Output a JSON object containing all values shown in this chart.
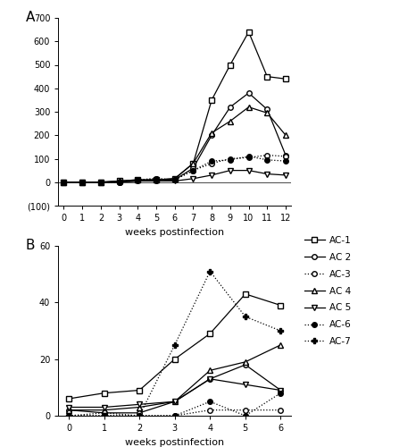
{
  "panel_A": {
    "weeks": [
      0,
      1,
      2,
      3,
      4,
      5,
      6,
      7,
      8,
      9,
      10,
      11,
      12
    ],
    "AC1": [
      0,
      0,
      0,
      5,
      10,
      10,
      15,
      80,
      350,
      500,
      640,
      450,
      440
    ],
    "AC2": [
      0,
      0,
      0,
      0,
      5,
      5,
      10,
      60,
      200,
      320,
      380,
      310,
      115
    ],
    "AC3": [
      0,
      0,
      0,
      0,
      10,
      15,
      10,
      50,
      80,
      100,
      105,
      115,
      110
    ],
    "AC4": [
      0,
      0,
      0,
      5,
      10,
      10,
      15,
      80,
      210,
      260,
      320,
      295,
      200
    ],
    "AC5": [
      0,
      0,
      0,
      0,
      5,
      5,
      5,
      15,
      30,
      50,
      50,
      35,
      30
    ],
    "AC6": [
      0,
      0,
      0,
      0,
      10,
      15,
      10,
      50,
      90,
      95,
      110,
      95,
      90
    ],
    "ylim": [
      -100,
      700
    ],
    "yticks": [
      -100,
      0,
      100,
      200,
      300,
      400,
      500,
      600,
      700
    ],
    "ytick_labels": [
      "(100)",
      "0",
      "100",
      "200",
      "300",
      "400",
      "500",
      "600",
      "700"
    ],
    "xticks": [
      0,
      1,
      2,
      3,
      4,
      5,
      6,
      7,
      8,
      9,
      10,
      11,
      12
    ],
    "xlabel": "weeks postinfection"
  },
  "panel_B": {
    "weeks": [
      0,
      1,
      2,
      3,
      4,
      5,
      6
    ],
    "AC1": [
      6,
      8,
      9,
      20,
      29,
      43,
      39
    ],
    "AC2": [
      2,
      1,
      1,
      5,
      13,
      18,
      9
    ],
    "AC3": [
      0,
      1,
      0,
      0,
      2,
      2,
      2
    ],
    "AC4": [
      2,
      2,
      3,
      5,
      16,
      19,
      25
    ],
    "AC5": [
      3,
      3,
      4,
      5,
      13,
      11,
      9
    ],
    "AC6": [
      0,
      0,
      0,
      0,
      5,
      0,
      8
    ],
    "AC7": [
      0,
      0,
      0,
      25,
      51,
      35,
      30
    ],
    "ylim": [
      0,
      60
    ],
    "yticks": [
      0,
      20,
      40,
      60
    ],
    "xticks": [
      0,
      1,
      2,
      3,
      4,
      5,
      6
    ],
    "xlabel": "weeks postinfection"
  },
  "legend": {
    "labels": [
      "AC-1",
      "AC 2",
      "AC-3",
      "AC 4",
      "AC 5",
      "AC-6",
      "AC-7"
    ]
  }
}
